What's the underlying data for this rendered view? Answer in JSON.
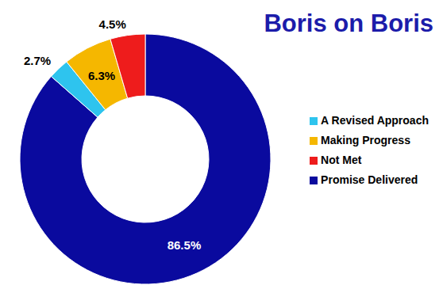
{
  "chart_data": {
    "type": "pie",
    "title": "Boris on Boris",
    "categories": [
      "Promise Delivered",
      "A Revised Approach",
      "Making Progress",
      "Not Met"
    ],
    "values": [
      86.5,
      2.7,
      6.3,
      4.5
    ],
    "value_labels": [
      "86.5%",
      "2.7%",
      "6.3%",
      "4.5%"
    ],
    "colors": [
      "#0a0a9e",
      "#2ec4ee",
      "#f5b700",
      "#ee1c1c"
    ],
    "data_labels": true,
    "legend": "right"
  }
}
